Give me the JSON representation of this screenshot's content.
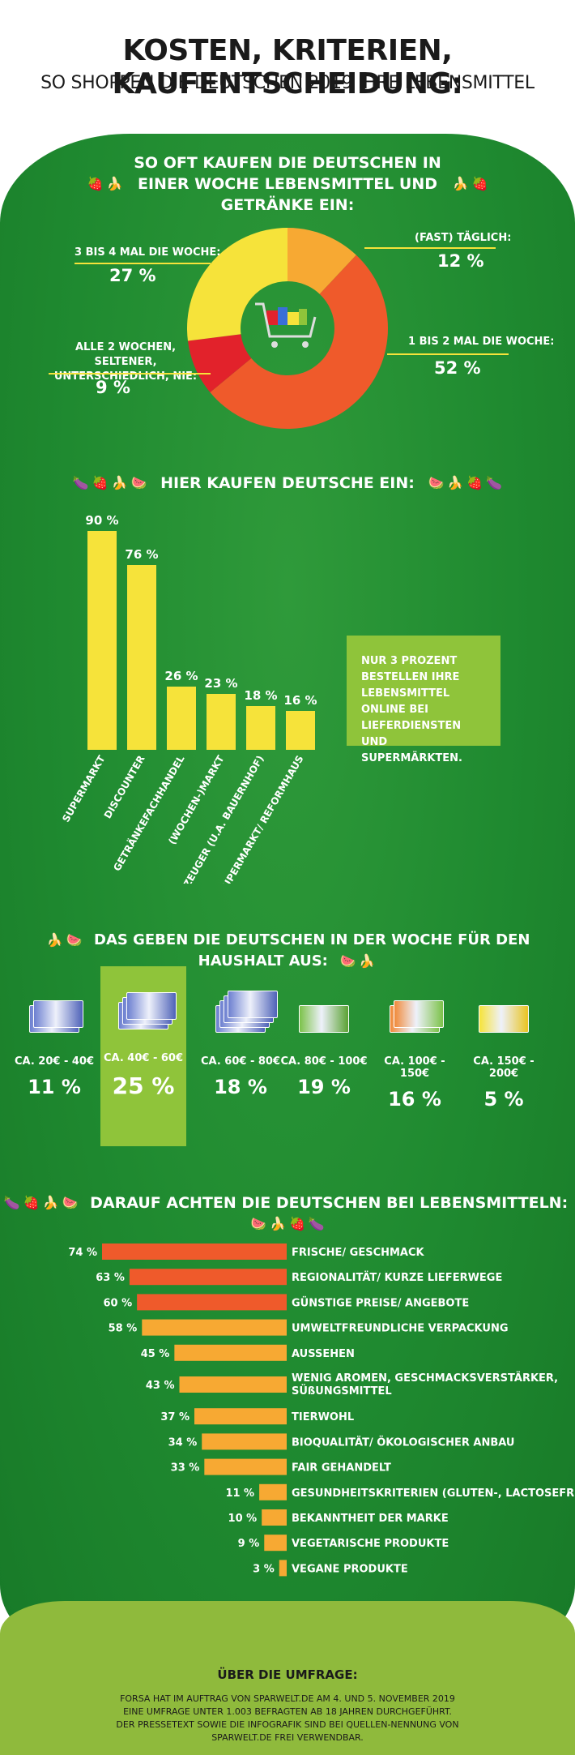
{
  "header": {
    "title": "KOSTEN, KRITERIEN, KAUFENTSCHEIDUNG:",
    "subtitle": "SO SHOPPEN DIE DEUTSCHEN 2019 IHRE LEBENSMITTEL"
  },
  "colors": {
    "green": "#1f8a30",
    "lightgreen": "#8fc43a",
    "yellow": "#f6e33a",
    "orange": "#f7a933",
    "darkorange": "#ef5a2b",
    "red": "#e2222b"
  },
  "chart_data": [
    {
      "type": "pie",
      "title": "SO OFT KAUFEN DIE DEUTSCHEN IN EINER WOCHE LEBENSMITTEL UND GETRÄNKE EIN:",
      "labels": [
        "(FAST) TÄGLICH:",
        "1 BIS 2 MAL DIE WOCHE:",
        "ALLE 2 WOCHEN, SELTENER, UNTERSCHIEDLICH, NIE:",
        "3 BIS 4 MAL DIE WOCHE:"
      ],
      "values": [
        12,
        52,
        9,
        27
      ],
      "value_labels": [
        "12 %",
        "52 %",
        "9 %",
        "27 %"
      ],
      "colors": [
        "#f7a933",
        "#ef5a2b",
        "#e2222b",
        "#f6e33a"
      ]
    },
    {
      "type": "bar",
      "title": "HIER KAUFEN DEUTSCHE EIN:",
      "categories": [
        "SUPERMARKT",
        "DISCOUNTER",
        "GETRÄNKEFACHHANDEL",
        "(WOCHEN-)MARKT",
        "ERZEUGER (U.A. BAUERNHOF)",
        "BIO-SUPERMARKT/ REFORMHAUS"
      ],
      "values": [
        90,
        76,
        26,
        23,
        18,
        16
      ],
      "value_labels": [
        "90 %",
        "76 %",
        "26 %",
        "23 %",
        "18 %",
        "16 %"
      ],
      "ylim": [
        0,
        100
      ]
    },
    {
      "type": "bar",
      "title": "DAS GEBEN DIE DEUTSCHEN IN DER WOCHE FÜR DEN HAUSHALT AUS:",
      "categories": [
        "CA. 20€ - 40€",
        "CA. 40€ - 60€",
        "CA. 60€ - 80€",
        "CA. 80€ - 100€",
        "CA. 100€ - 150€",
        "CA. 150€ - 200€"
      ],
      "values": [
        11,
        25,
        18,
        19,
        16,
        5
      ],
      "value_labels": [
        "11 %",
        "25 %",
        "18 %",
        "19 %",
        "16 %",
        "5 %"
      ]
    },
    {
      "type": "bar",
      "title": "DARAUF ACHTEN DIE DEUTSCHEN BEI LEBENSMITTELN:",
      "categories": [
        "FRISCHE/ GESCHMACK",
        "REGIONALITÄT/ KURZE LIEFERWEGE",
        "GÜNSTIGE PREISE/ ANGEBOTE",
        "UMWELTFREUNDLICHE VERPACKUNG",
        "AUSSEHEN",
        "WENIG AROMEN, GESCHMACKSVERSTÄRKER, SÜßUNGSMITTEL",
        "TIERWOHL",
        "BIOQUALITÄT/ ÖKOLOGISCHER ANBAU",
        "FAIR GEHANDELT",
        "GESUNDHEITSKRITERIEN (GLUTEN-, LACTOSEFREI)",
        "BEKANNTHEIT DER MARKE",
        "VEGETARISCHE PRODUKTE",
        "VEGANE PRODUKTE"
      ],
      "values": [
        74,
        63,
        60,
        58,
        45,
        43,
        37,
        34,
        33,
        11,
        10,
        9,
        3
      ],
      "value_labels": [
        "74 %",
        "63 %",
        "60 %",
        "58 %",
        "45 %",
        "43 %",
        "37 %",
        "34 %",
        "33 %",
        "11 %",
        "10 %",
        "9 %",
        "3 %"
      ],
      "colors": [
        "#ef5a2b",
        "#ef5a2b",
        "#ef5a2b",
        "#f7a933",
        "#f7a933",
        "#f7a933",
        "#f7a933",
        "#f7a933",
        "#f7a933",
        "#f7a933",
        "#f7a933",
        "#f7a933",
        "#f7a933"
      ],
      "xlim": [
        0,
        100
      ]
    }
  ],
  "online_note": "NUR 3 PROZENT BESTELLEN IHRE LEBENSMITTEL ONLINE BEI LIEFERDIENSTEN UND SUPERMÄRKTEN.",
  "footer": {
    "title": "ÜBER DIE UMFRAGE:",
    "text": "FORSA HAT IM AUFTRAG VON SPARWELT.DE AM 4. UND 5. NOVEMBER 2019 EINE UMFRAGE UNTER 1.003 BEFRAGTEN AB 18 JAHREN DURCHGEFÜHRT. DER PRESSETEXT SOWIE DIE INFOGRAFIK SIND BEI QUELLEN-NENNUNG VON SPARWELT.DE FREI VERWENDBAR."
  }
}
